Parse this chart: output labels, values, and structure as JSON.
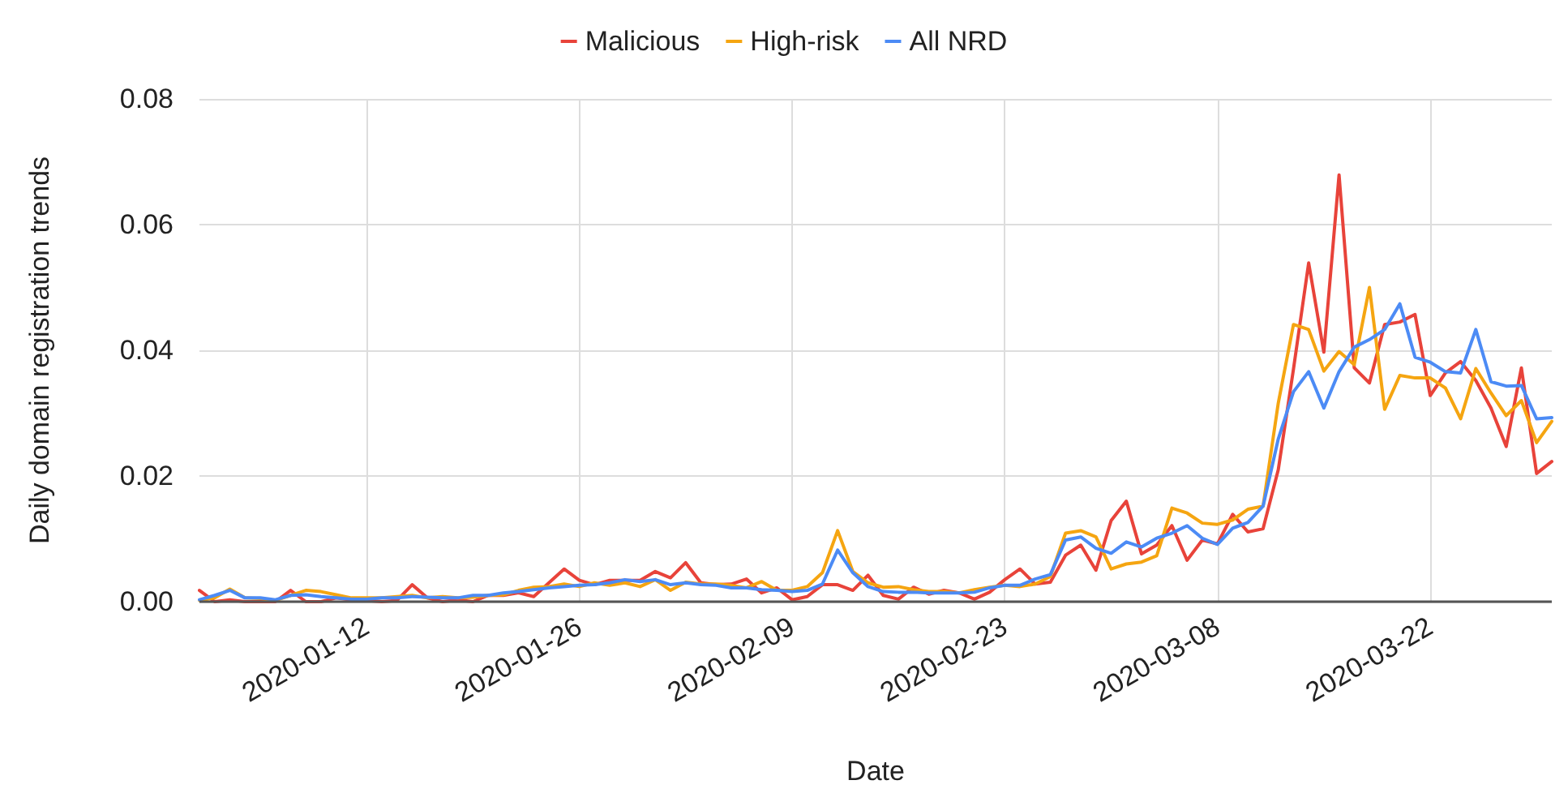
{
  "chart_data": {
    "type": "line",
    "xlabel": "Date",
    "ylabel": "Daily domain registration trends",
    "x": [
      "2020-01-01",
      "2020-01-02",
      "2020-01-03",
      "2020-01-04",
      "2020-01-05",
      "2020-01-06",
      "2020-01-07",
      "2020-01-08",
      "2020-01-09",
      "2020-01-10",
      "2020-01-11",
      "2020-01-12",
      "2020-01-13",
      "2020-01-14",
      "2020-01-15",
      "2020-01-16",
      "2020-01-17",
      "2020-01-18",
      "2020-01-19",
      "2020-01-20",
      "2020-01-21",
      "2020-01-22",
      "2020-01-23",
      "2020-01-24",
      "2020-01-25",
      "2020-01-26",
      "2020-01-27",
      "2020-01-28",
      "2020-01-29",
      "2020-01-30",
      "2020-01-31",
      "2020-02-01",
      "2020-02-02",
      "2020-02-03",
      "2020-02-04",
      "2020-02-05",
      "2020-02-06",
      "2020-02-07",
      "2020-02-08",
      "2020-02-09",
      "2020-02-10",
      "2020-02-11",
      "2020-02-12",
      "2020-02-13",
      "2020-02-14",
      "2020-02-15",
      "2020-02-16",
      "2020-02-17",
      "2020-02-18",
      "2020-02-19",
      "2020-02-20",
      "2020-02-21",
      "2020-02-22",
      "2020-02-23",
      "2020-02-24",
      "2020-02-25",
      "2020-02-26",
      "2020-02-27",
      "2020-02-28",
      "2020-02-29",
      "2020-03-01",
      "2020-03-02",
      "2020-03-03",
      "2020-03-04",
      "2020-03-05",
      "2020-03-06",
      "2020-03-07",
      "2020-03-08",
      "2020-03-09",
      "2020-03-10",
      "2020-03-11",
      "2020-03-12",
      "2020-03-13",
      "2020-03-14",
      "2020-03-15",
      "2020-03-16",
      "2020-03-17",
      "2020-03-18",
      "2020-03-19",
      "2020-03-20",
      "2020-03-21",
      "2020-03-22",
      "2020-03-23",
      "2020-03-24",
      "2020-03-25",
      "2020-03-26",
      "2020-03-27",
      "2020-03-28",
      "2020-03-29",
      "2020-03-30"
    ],
    "series": [
      {
        "name": "Malicious",
        "color": "#e8433a",
        "values": [
          0.0018,
          0,
          0.0003,
          0,
          0,
          0,
          0.0018,
          0,
          0,
          0.0006,
          0.0003,
          0.0002,
          0,
          0.0002,
          0.0027,
          0.0006,
          0,
          0.0003,
          0,
          0.001,
          0.001,
          0.0014,
          0.0008,
          0.003,
          0.0052,
          0.0034,
          0.0027,
          0.0034,
          0.0034,
          0.0034,
          0.0048,
          0.0038,
          0.0062,
          0.003,
          0.0027,
          0.0028,
          0.0036,
          0.0014,
          0.0022,
          0.0003,
          0.0008,
          0.0027,
          0.0027,
          0.0018,
          0.0042,
          0.001,
          0.0004,
          0.0023,
          0.0012,
          0.0018,
          0.0014,
          0.0004,
          0.0015,
          0.0035,
          0.0052,
          0.0028,
          0.0031,
          0.0074,
          0.009,
          0.005,
          0.0129,
          0.016,
          0.0076,
          0.009,
          0.0121,
          0.0066,
          0.0098,
          0.0092,
          0.0139,
          0.0111,
          0.0116,
          0.021,
          0.037,
          0.0539,
          0.0397,
          0.0679,
          0.0372,
          0.0348,
          0.0441,
          0.0445,
          0.0457,
          0.0328,
          0.0364,
          0.0382,
          0.0352,
          0.0308,
          0.0247,
          0.0372,
          0.0204,
          0.0223
        ]
      },
      {
        "name": "High-risk",
        "color": "#f5a511",
        "values": [
          0.0002,
          0.0006,
          0.002,
          0.0006,
          0.0005,
          0.0002,
          0.001,
          0.0018,
          0.0016,
          0.0011,
          0.0006,
          0.0006,
          0.0006,
          0.0008,
          0.001,
          0.0006,
          0.0008,
          0.0006,
          0.0007,
          0.001,
          0.0011,
          0.0018,
          0.0023,
          0.0024,
          0.0028,
          0.0024,
          0.003,
          0.0026,
          0.003,
          0.0024,
          0.0035,
          0.0018,
          0.0031,
          0.0028,
          0.0028,
          0.0026,
          0.0022,
          0.0032,
          0.0018,
          0.0018,
          0.0024,
          0.0046,
          0.0113,
          0.0048,
          0.003,
          0.0023,
          0.0024,
          0.0019,
          0.0016,
          0.0016,
          0.0014,
          0.0019,
          0.0023,
          0.0026,
          0.0024,
          0.0028,
          0.004,
          0.0109,
          0.0113,
          0.0103,
          0.0052,
          0.006,
          0.0063,
          0.0073,
          0.0149,
          0.0141,
          0.0125,
          0.0123,
          0.013,
          0.0147,
          0.0152,
          0.0316,
          0.0441,
          0.0433,
          0.0367,
          0.0398,
          0.0377,
          0.05,
          0.0306,
          0.036,
          0.0356,
          0.0356,
          0.034,
          0.0291,
          0.0371,
          0.0332,
          0.0296,
          0.032,
          0.0253,
          0.0287
        ]
      },
      {
        "name": "All NRD",
        "color": "#4c8bf5",
        "values": [
          0.0003,
          0.001,
          0.0018,
          0.0006,
          0.0006,
          0.0003,
          0.001,
          0.0011,
          0.0008,
          0.0006,
          0.0004,
          0.0004,
          0.0006,
          0.0006,
          0.0008,
          0.0007,
          0.0006,
          0.0006,
          0.001,
          0.001,
          0.0014,
          0.0016,
          0.0019,
          0.0022,
          0.0024,
          0.0026,
          0.0027,
          0.003,
          0.0035,
          0.0032,
          0.0035,
          0.0027,
          0.003,
          0.0027,
          0.0026,
          0.0022,
          0.0022,
          0.0019,
          0.0018,
          0.0016,
          0.0018,
          0.0028,
          0.0082,
          0.0046,
          0.0024,
          0.0016,
          0.0015,
          0.0015,
          0.0014,
          0.0014,
          0.0014,
          0.0015,
          0.0022,
          0.0026,
          0.0026,
          0.0036,
          0.0043,
          0.0098,
          0.0103,
          0.0085,
          0.0077,
          0.0095,
          0.0087,
          0.0101,
          0.0109,
          0.0121,
          0.0101,
          0.0091,
          0.0117,
          0.0126,
          0.0152,
          0.0259,
          0.0334,
          0.0366,
          0.0308,
          0.0366,
          0.0405,
          0.0417,
          0.0433,
          0.0474,
          0.0389,
          0.0381,
          0.0366,
          0.0364,
          0.0433,
          0.035,
          0.0343,
          0.0344,
          0.0291,
          0.0293
        ]
      }
    ],
    "xlim": [
      "2020-01-01",
      "2020-03-30"
    ],
    "xticks": [
      "2020-01-12",
      "2020-01-26",
      "2020-02-09",
      "2020-02-23",
      "2020-03-08",
      "2020-03-22"
    ],
    "ylim": [
      0,
      0.08
    ],
    "yticks": [
      {
        "value": 0,
        "label": "0.00"
      },
      {
        "value": 0.02,
        "label": "0.02"
      },
      {
        "value": 0.04,
        "label": "0.04"
      },
      {
        "value": 0.06,
        "label": "0.06"
      },
      {
        "value": 0.08,
        "label": "0.08"
      }
    ],
    "grid": true,
    "legend": "top",
    "marker": "none",
    "line_style": "solid"
  }
}
